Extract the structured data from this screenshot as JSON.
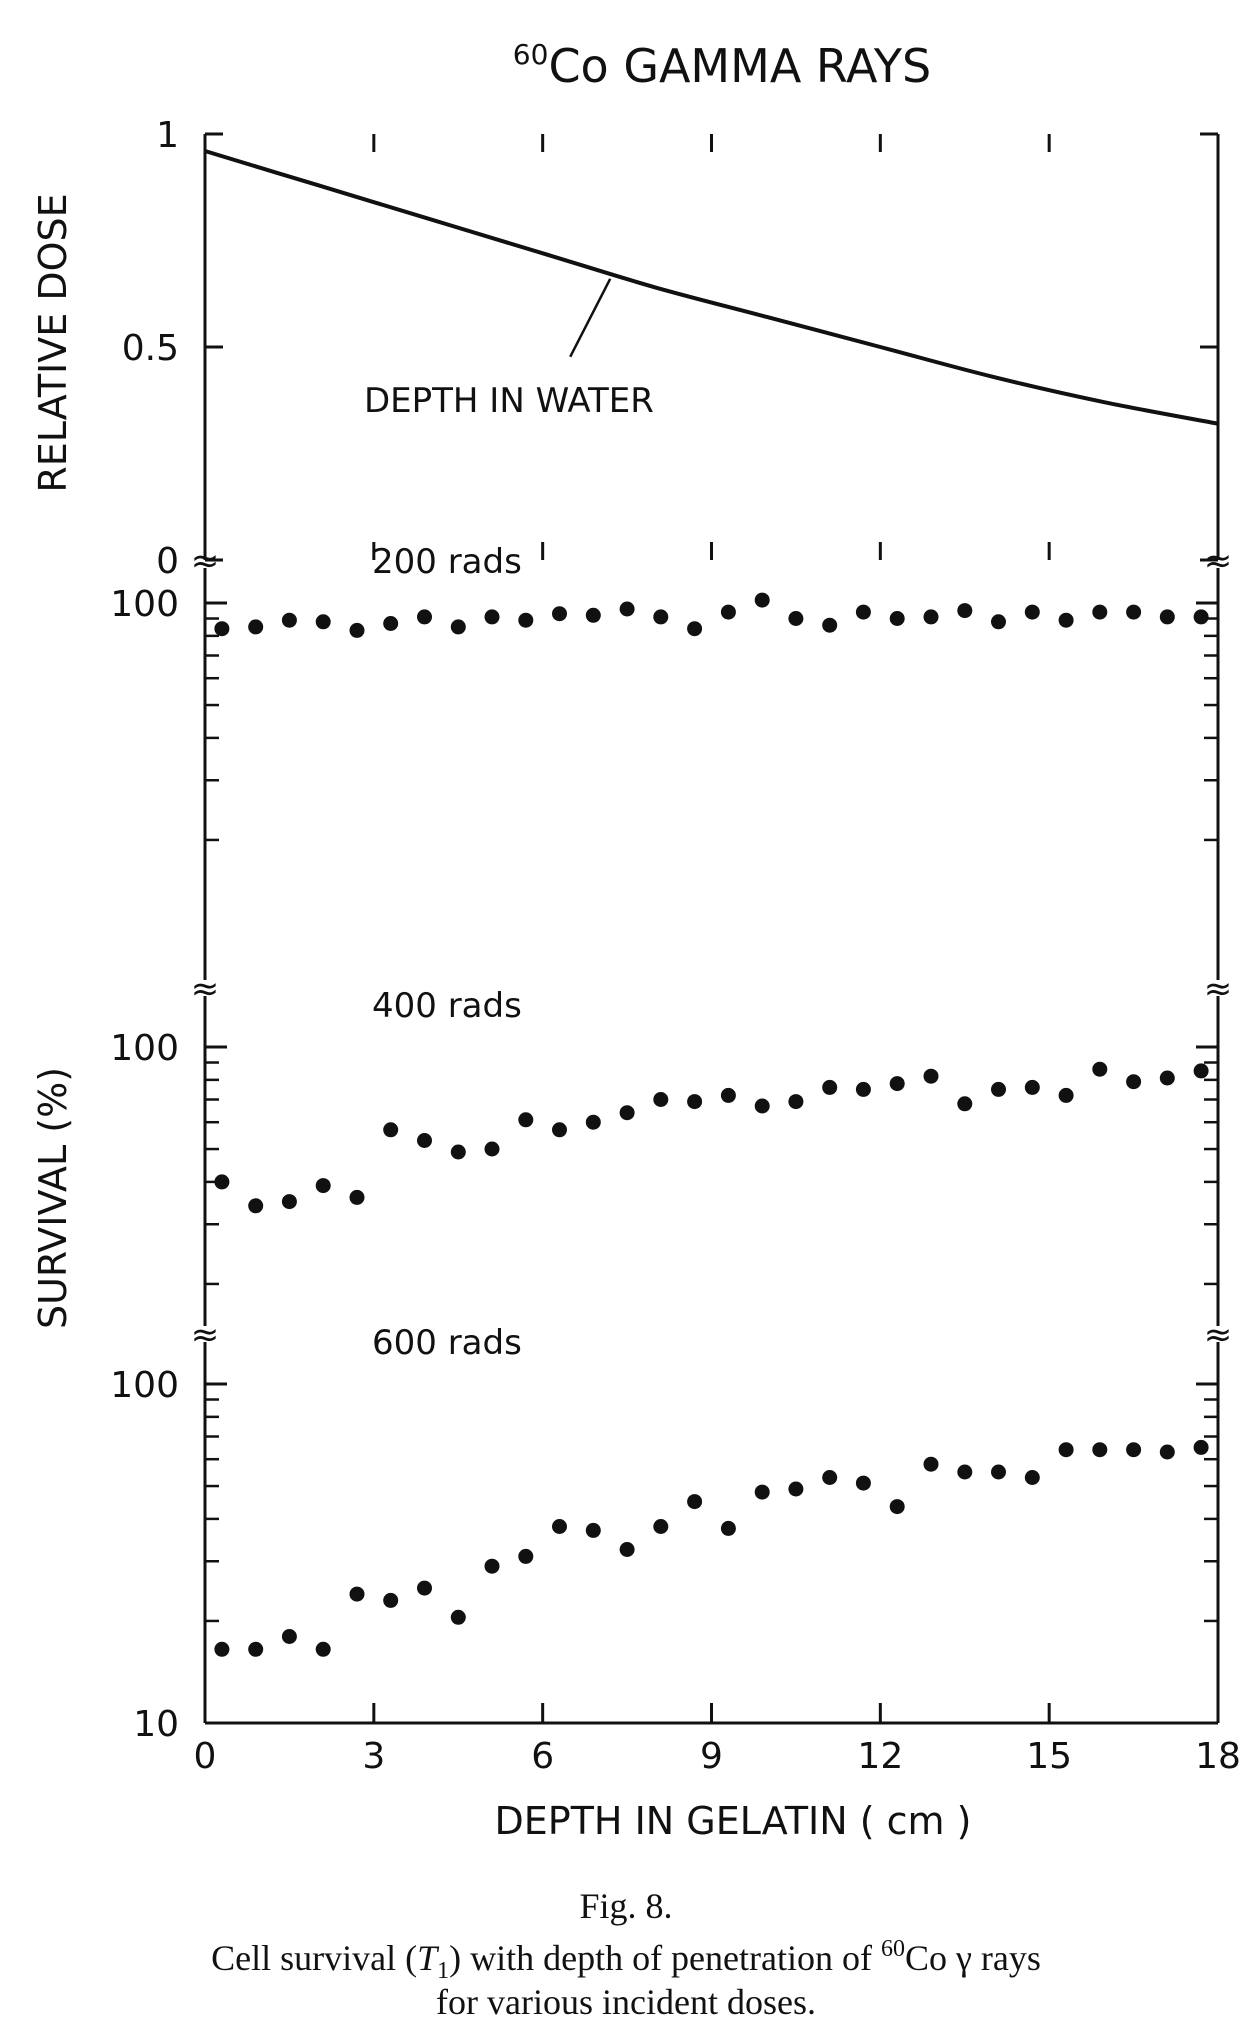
{
  "figure": {
    "title_sup": "60",
    "title": "Co GAMMA RAYS",
    "x_label": "DEPTH IN GELATIN ( cm )",
    "y_label_top": "RELATIVE DOSE",
    "y_label_bottom": "SURVIVAL (%)",
    "caption_fig": "Fig. 8.",
    "caption_line1_pre": "Cell survival (",
    "caption_line1_T": "T",
    "caption_line1_sub": "1",
    "caption_line1_mid": ") with depth of penetration of ",
    "caption_line1_sup": "60",
    "caption_line1_post": "Co γ rays",
    "caption_line2": "for various incident doses.",
    "break_mark": "≈"
  },
  "chart_data": [
    {
      "type": "line",
      "title": "60Co GAMMA RAYS",
      "xlabel": "",
      "ylabel": "RELATIVE DOSE",
      "xlim": [
        0,
        18
      ],
      "ylim": [
        0,
        1
      ],
      "x_ticks": [
        "0",
        "3",
        "6",
        "9",
        "12",
        "15",
        "18"
      ],
      "y_ticks": [
        {
          "value": 0,
          "label": "0"
        },
        {
          "value": 0.5,
          "label": "0.5"
        },
        {
          "value": 1,
          "label": "1"
        }
      ],
      "annotation": "DEPTH IN WATER",
      "series": [
        {
          "x": [
            0,
            2,
            4,
            6,
            8,
            10,
            12,
            14,
            16,
            18
          ],
          "y": [
            0.96,
            0.88,
            0.8,
            0.72,
            0.64,
            0.57,
            0.5,
            0.43,
            0.37,
            0.32
          ]
        }
      ]
    },
    {
      "type": "scatter",
      "label": "200 rads",
      "ylim": [
        10,
        100
      ],
      "y_scale": "log",
      "y_ticks": [
        {
          "value": 100,
          "label": "100"
        }
      ],
      "x": [
        0.3,
        0.9,
        1.5,
        2.1,
        2.7,
        3.3,
        3.9,
        4.5,
        5.1,
        5.7,
        6.3,
        6.9,
        7.5,
        8.1,
        8.7,
        9.3,
        9.9,
        10.5,
        11.1,
        11.7,
        12.3,
        12.9,
        13.5,
        14.1,
        14.7,
        15.3,
        15.9,
        16.5,
        17.1,
        17.7
      ],
      "y": [
        84,
        85,
        89,
        88,
        83,
        87,
        91,
        85,
        91,
        89,
        93,
        92,
        96,
        91,
        84,
        94,
        102,
        90,
        86,
        94,
        90,
        91,
        95,
        88,
        94,
        89,
        94,
        94,
        91,
        91
      ]
    },
    {
      "type": "scatter",
      "label": "400 rads",
      "ylim": [
        10,
        100
      ],
      "y_scale": "log",
      "y_ticks": [
        {
          "value": 100,
          "label": "100"
        }
      ],
      "x": [
        0.3,
        0.9,
        1.5,
        2.1,
        2.7,
        3.3,
        3.9,
        4.5,
        5.1,
        5.7,
        6.3,
        6.9,
        7.5,
        8.1,
        8.7,
        9.3,
        9.9,
        10.5,
        11.1,
        11.7,
        12.3,
        12.9,
        13.5,
        14.1,
        14.7,
        15.3,
        15.9,
        16.5,
        17.1,
        17.7
      ],
      "y": [
        40,
        34,
        35,
        39,
        36,
        57,
        53,
        49,
        50,
        61,
        57,
        60,
        64,
        70,
        69,
        72,
        67,
        69,
        76,
        75,
        78,
        82,
        68,
        75,
        76,
        72,
        86,
        79,
        81,
        85
      ]
    },
    {
      "type": "scatter",
      "label": "600 rads",
      "xlabel": "DEPTH IN GELATIN ( cm )",
      "ylabel": "SURVIVAL (%)",
      "xlim": [
        0,
        18
      ],
      "ylim": [
        10,
        100
      ],
      "y_scale": "log",
      "x_ticks": [
        "0",
        "3",
        "6",
        "9",
        "12",
        "15",
        "18"
      ],
      "y_ticks": [
        {
          "value": 10,
          "label": "10"
        },
        {
          "value": 100,
          "label": "100"
        }
      ],
      "x": [
        0.3,
        0.9,
        1.5,
        2.1,
        2.7,
        3.3,
        3.9,
        4.5,
        5.1,
        5.7,
        6.3,
        6.9,
        7.5,
        8.1,
        8.7,
        9.3,
        9.9,
        10.5,
        11.1,
        11.7,
        12.3,
        12.9,
        13.5,
        14.1,
        14.7,
        15.3,
        15.9,
        16.5,
        17.1,
        17.7
      ],
      "y": [
        16.5,
        16.5,
        18,
        16.5,
        24,
        23,
        25,
        20.5,
        29,
        31,
        38,
        37,
        32.5,
        38,
        45,
        37.5,
        48,
        49,
        53,
        51,
        43.5,
        58,
        55,
        55,
        53,
        64,
        64,
        64,
        63,
        65
      ]
    }
  ]
}
